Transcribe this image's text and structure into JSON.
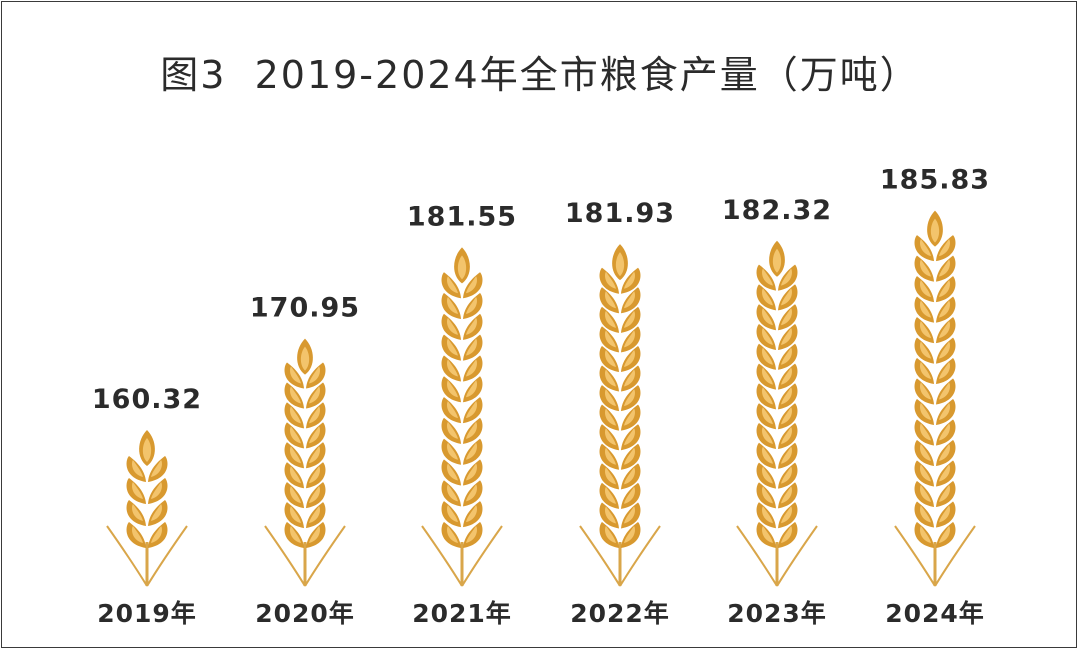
{
  "chart_data": {
    "type": "bar",
    "title": "图3  2019-2024年全市粮食产量（万吨）",
    "categories": [
      "2019年",
      "2020年",
      "2021年",
      "2022年",
      "2023年",
      "2024年"
    ],
    "values": [
      160.32,
      170.95,
      181.55,
      181.93,
      182.32,
      185.83
    ],
    "value_labels": [
      "160.32",
      "170.95",
      "181.55",
      "181.93",
      "182.32",
      "185.83"
    ],
    "mark": "wheat-ear",
    "colors": {
      "grain_outer": "#d8992f",
      "grain_inner": "#f3c46c",
      "stalk": "#d9a64a",
      "text": "#2b2b2b"
    }
  }
}
